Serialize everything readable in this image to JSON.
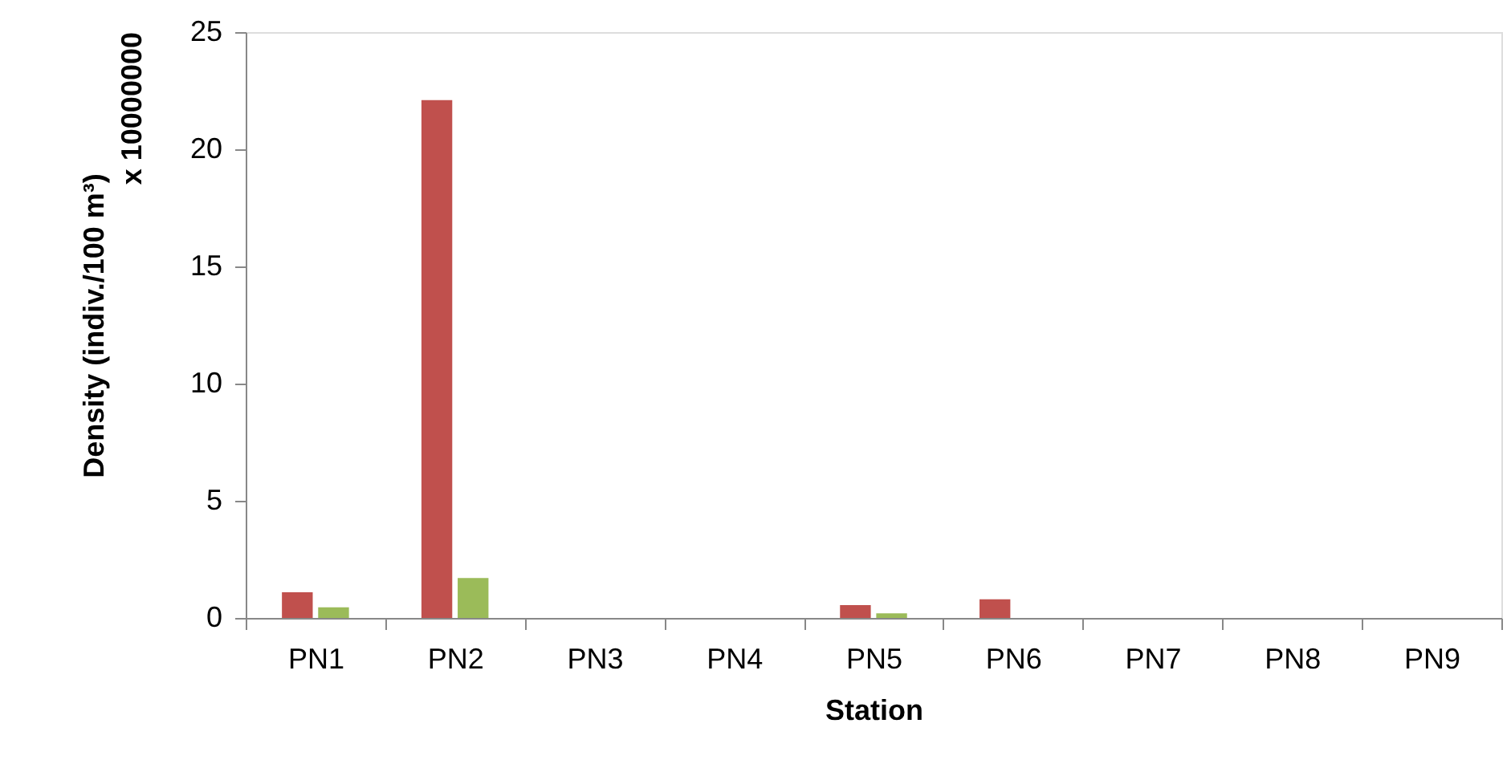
{
  "chart_data": {
    "type": "bar",
    "xlabel": "Station",
    "ylabel": "Density (indiv./100 m³)",
    "annotations": [
      "x 10000000"
    ],
    "categories": [
      "PN1",
      "PN2",
      "PN3",
      "PN4",
      "PN5",
      "PN6",
      "PN7",
      "PN8",
      "PN9"
    ],
    "series": [
      {
        "color": "#c0504d",
        "values": [
          1.1,
          22.1,
          0,
          0,
          0.55,
          0.8,
          0,
          0,
          0
        ]
      },
      {
        "color": "#9bbb59",
        "values": [
          0.45,
          1.7,
          0,
          0,
          0.2,
          0,
          0,
          0,
          0
        ]
      }
    ],
    "ylim": [
      0,
      25
    ],
    "yticks": [
      0,
      5,
      10,
      15,
      20,
      25
    ],
    "grid": false
  }
}
